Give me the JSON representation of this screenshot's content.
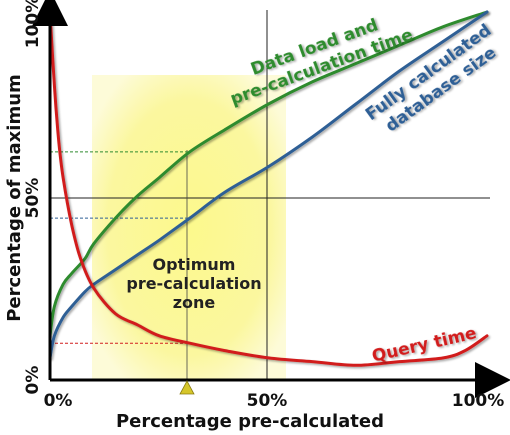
{
  "chart_data": {
    "type": "line",
    "xlabel": "Percentage pre-calculated",
    "ylabel": "Percentage of maximum",
    "xlim": [
      0,
      100
    ],
    "ylim": [
      0,
      100
    ],
    "x_ticks": [
      "0%",
      "50%",
      "100%"
    ],
    "y_ticks": [
      "0%",
      "50%",
      "100%"
    ],
    "grid": "single lines at 50% on both axes",
    "highlight_zone": {
      "label_lines": [
        "Optimum",
        "pre-calculation",
        "zone"
      ],
      "x_range": [
        10,
        55
      ],
      "y_range": [
        0,
        73
      ],
      "marker_x": 32
    },
    "reference_x": 32,
    "colors": {
      "zone": "#fbf79a",
      "grid": "#222222",
      "data_load": "#2e8b2e",
      "database_size": "#2f5f95",
      "query_time": "#d11f1f",
      "marker": "#d6c62a"
    },
    "series": [
      {
        "key": "data_load",
        "label_lines": [
          "Data load and",
          "pre-calculation time"
        ],
        "x": [
          0,
          1,
          3,
          5,
          8,
          10,
          15,
          20,
          25,
          32,
          40,
          50,
          60,
          70,
          80,
          90,
          100
        ],
        "y": [
          12,
          20,
          26,
          29,
          33,
          37,
          44,
          50,
          55,
          62,
          68,
          75,
          81,
          86,
          91,
          96,
          100
        ]
      },
      {
        "key": "database_size",
        "label_lines": [
          "Fully calculated",
          "database size"
        ],
        "x": [
          0,
          1,
          3,
          5,
          8,
          10,
          15,
          20,
          25,
          32,
          40,
          50,
          60,
          70,
          80,
          90,
          100
        ],
        "y": [
          6,
          12,
          17,
          20,
          24,
          26,
          30,
          34,
          38,
          44,
          51,
          58,
          66,
          75,
          84,
          92,
          100
        ]
      },
      {
        "key": "query_time",
        "label_lines": [
          "Query time"
        ],
        "x": [
          0,
          1,
          2,
          3,
          5,
          7,
          10,
          15,
          20,
          25,
          32,
          40,
          50,
          60,
          70,
          80,
          90,
          95,
          100
        ],
        "y": [
          100,
          80,
          65,
          55,
          42,
          33,
          25,
          18,
          15,
          12,
          10,
          8,
          6,
          5,
          4,
          5,
          6,
          8,
          12
        ]
      }
    ]
  }
}
